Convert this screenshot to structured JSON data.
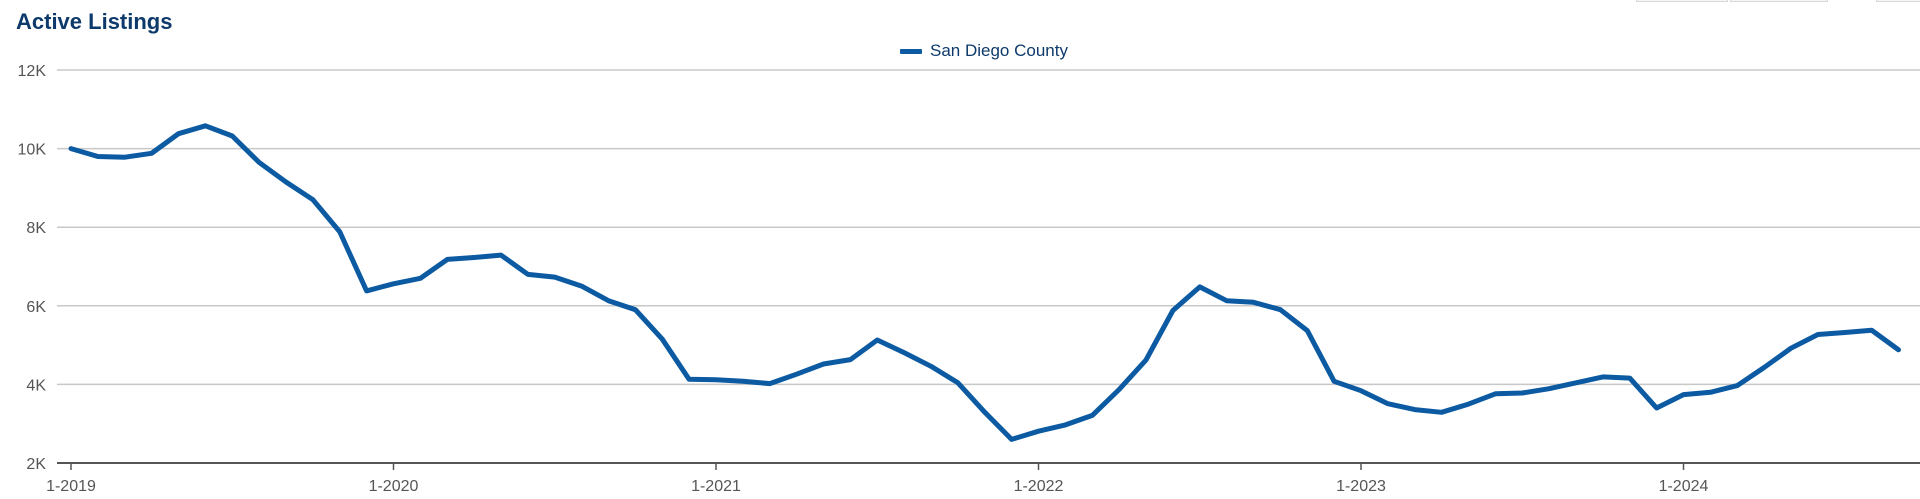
{
  "chart_data": {
    "type": "line",
    "title": "Active Listings",
    "legend": [
      "San Diego County"
    ],
    "xlabel": "",
    "ylabel": "",
    "ylim": [
      2000,
      12000
    ],
    "y_ticks": [
      {
        "value": 2000,
        "label": "2K"
      },
      {
        "value": 4000,
        "label": "4K"
      },
      {
        "value": 6000,
        "label": "6K"
      },
      {
        "value": 8000,
        "label": "8K"
      },
      {
        "value": 10000,
        "label": "10K"
      },
      {
        "value": 12000,
        "label": "12K"
      }
    ],
    "x_ticks": [
      {
        "index": 0,
        "label": "1-2019"
      },
      {
        "index": 12,
        "label": "1-2020"
      },
      {
        "index": 24,
        "label": "1-2021"
      },
      {
        "index": 36,
        "label": "1-2022"
      },
      {
        "index": 48,
        "label": "1-2023"
      },
      {
        "index": 60,
        "label": "1-2024"
      }
    ],
    "x_range": [
      0,
      68.8
    ],
    "series": [
      {
        "name": "San Diego County",
        "color": "#0b5aa2",
        "values": [
          10000,
          9800,
          9780,
          9880,
          10380,
          10580,
          10320,
          9650,
          9150,
          8700,
          7880,
          6380,
          6560,
          6700,
          7180,
          7230,
          7290,
          6800,
          6730,
          6500,
          6130,
          5900,
          5150,
          4130,
          4120,
          4080,
          4020,
          4260,
          4520,
          4630,
          5130,
          4810,
          4460,
          4040,
          3290,
          2600,
          2810,
          2970,
          3210,
          3870,
          4620,
          5880,
          6480,
          6130,
          6090,
          5900,
          5370,
          4080,
          3840,
          3510,
          3360,
          3290,
          3500,
          3760,
          3780,
          3890,
          4040,
          4190,
          4160,
          3400,
          3740,
          3800,
          3970,
          4430,
          4920,
          5270,
          5320,
          5380,
          4880
        ]
      }
    ]
  }
}
